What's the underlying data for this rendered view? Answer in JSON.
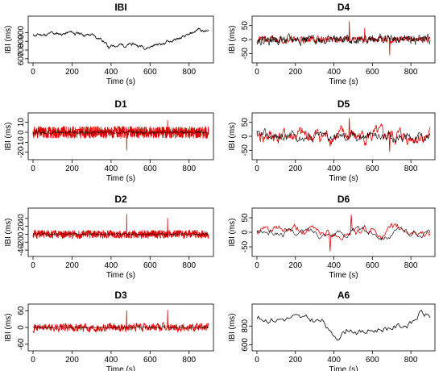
{
  "chart_data": [
    {
      "id": "ibi",
      "title": "IBI",
      "type": "line",
      "xlabel": "Time (s)",
      "ylabel": "IBI (ms)",
      "xlim": [
        0,
        900
      ],
      "ylim": [
        580,
        1060
      ],
      "xticks": [
        0,
        200,
        400,
        600,
        800
      ],
      "yticks": [
        600,
        700,
        800,
        900
      ],
      "series": [
        {
          "color": "#000000",
          "samples": 450,
          "noise": 40,
          "smooth": 0.9,
          "seed": 11,
          "trend": [
            [
              0,
              870
            ],
            [
              100,
              880
            ],
            [
              200,
              895
            ],
            [
              300,
              870
            ],
            [
              360,
              820
            ],
            [
              390,
              720
            ],
            [
              420,
              760
            ],
            [
              500,
              760
            ],
            [
              580,
              740
            ],
            [
              650,
              770
            ],
            [
              700,
              800
            ],
            [
              800,
              850
            ],
            [
              850,
              940
            ],
            [
              900,
              910
            ]
          ]
        }
      ]
    },
    {
      "id": "d4",
      "title": "D4",
      "type": "line",
      "xlabel": "Time (s)",
      "ylabel": "IBI (ms)",
      "xlim": [
        0,
        900
      ],
      "ylim": [
        -75,
        75
      ],
      "xticks": [
        0,
        200,
        400,
        600,
        800
      ],
      "yticks": [
        -50,
        0,
        50
      ],
      "series": [
        {
          "color": "#e00000",
          "samples": 450,
          "noise": 18,
          "smooth": 0.45,
          "seed": 21,
          "trend": [
            [
              0,
              0
            ],
            [
              900,
              0
            ]
          ],
          "spikes": [
            [
              480,
              65
            ],
            [
              690,
              -55
            ],
            [
              560,
              40
            ]
          ]
        },
        {
          "color": "#000000",
          "samples": 450,
          "noise": 10,
          "smooth": 0.6,
          "seed": 22,
          "trend": [
            [
              0,
              0
            ],
            [
              900,
              0
            ]
          ],
          "width": 0.6
        }
      ]
    },
    {
      "id": "d1",
      "title": "D1",
      "type": "line",
      "xlabel": "Time (s)",
      "ylabel": "IBI (ms)",
      "xlim": [
        0,
        900
      ],
      "ylim": [
        -25,
        17
      ],
      "xticks": [
        0,
        200,
        400,
        600,
        800
      ],
      "yticks": [
        -20,
        -10,
        0,
        10
      ],
      "series": [
        {
          "color": "#e00000",
          "samples": 900,
          "noise": 6,
          "smooth": 0.0,
          "seed": 31,
          "trend": [
            [
              0,
              0
            ],
            [
              900,
              0
            ]
          ],
          "spikes": [
            [
              480,
              -18
            ],
            [
              690,
              12
            ]
          ]
        },
        {
          "color": "#000000",
          "samples": 450,
          "noise": 2,
          "smooth": 0.3,
          "seed": 32,
          "trend": [
            [
              0,
              0
            ],
            [
              900,
              0
            ]
          ],
          "width": 0.5
        }
      ]
    },
    {
      "id": "d5",
      "title": "D5",
      "type": "line",
      "xlabel": "Time (s)",
      "ylabel": "IBI (ms)",
      "xlim": [
        0,
        900
      ],
      "ylim": [
        -75,
        75
      ],
      "xticks": [
        0,
        200,
        400,
        600,
        800
      ],
      "yticks": [
        -50,
        0,
        50
      ],
      "series": [
        {
          "color": "#e00000",
          "samples": 300,
          "noise": 22,
          "smooth": 0.7,
          "seed": 41,
          "trend": [
            [
              0,
              0
            ],
            [
              900,
              0
            ]
          ],
          "spikes": [
            [
              480,
              65
            ],
            [
              690,
              -55
            ]
          ]
        },
        {
          "color": "#000000",
          "samples": 300,
          "noise": 16,
          "smooth": 0.75,
          "seed": 42,
          "trend": [
            [
              0,
              0
            ],
            [
              900,
              0
            ]
          ],
          "width": 0.6
        }
      ]
    },
    {
      "id": "d2",
      "title": "D2",
      "type": "line",
      "xlabel": "Time (s)",
      "ylabel": "IBI (ms)",
      "xlim": [
        0,
        900
      ],
      "ylim": [
        -50,
        60
      ],
      "xticks": [
        0,
        200,
        400,
        600,
        800
      ],
      "yticks": [
        -40,
        -20,
        0,
        20,
        40
      ],
      "series": [
        {
          "color": "#e00000",
          "samples": 900,
          "noise": 12,
          "smooth": 0.2,
          "seed": 51,
          "trend": [
            [
              0,
              0
            ],
            [
              900,
              0
            ]
          ],
          "spikes": [
            [
              480,
              50
            ],
            [
              690,
              40
            ]
          ]
        },
        {
          "color": "#000000",
          "samples": 450,
          "noise": 4,
          "smooth": 0.4,
          "seed": 52,
          "trend": [
            [
              0,
              0
            ],
            [
              900,
              0
            ]
          ],
          "width": 0.5
        }
      ]
    },
    {
      "id": "d6",
      "title": "D6",
      "type": "line",
      "xlabel": "Time (s)",
      "ylabel": "IBI (ms)",
      "xlim": [
        0,
        900
      ],
      "ylim": [
        -75,
        75
      ],
      "xticks": [
        0,
        200,
        400,
        600,
        800
      ],
      "yticks": [
        -50,
        0,
        50
      ],
      "series": [
        {
          "color": "#e00000",
          "samples": 180,
          "noise": 25,
          "smooth": 0.85,
          "seed": 61,
          "trend": [
            [
              0,
              0
            ],
            [
              900,
              0
            ]
          ],
          "spikes": [
            [
              380,
              -65
            ],
            [
              490,
              60
            ]
          ]
        },
        {
          "color": "#000000",
          "samples": 180,
          "noise": 22,
          "smooth": 0.87,
          "seed": 62,
          "trend": [
            [
              0,
              0
            ],
            [
              900,
              0
            ]
          ],
          "width": 0.6
        }
      ]
    },
    {
      "id": "d3",
      "title": "D3",
      "type": "line",
      "xlabel": "Time (s)",
      "ylabel": "IBI (ms)",
      "xlim": [
        0,
        900
      ],
      "ylim": [
        -75,
        75
      ],
      "xticks": [
        0,
        200,
        400,
        600,
        800
      ],
      "yticks": [
        -60,
        0,
        60
      ],
      "series": [
        {
          "color": "#e00000",
          "samples": 600,
          "noise": 20,
          "smooth": 0.35,
          "seed": 71,
          "trend": [
            [
              0,
              0
            ],
            [
              900,
              0
            ]
          ],
          "spikes": [
            [
              480,
              60
            ],
            [
              690,
              62
            ]
          ]
        },
        {
          "color": "#000000",
          "samples": 450,
          "noise": 6,
          "smooth": 0.5,
          "seed": 72,
          "trend": [
            [
              0,
              0
            ],
            [
              900,
              0
            ]
          ],
          "width": 0.5
        }
      ]
    },
    {
      "id": "a6",
      "title": "A6",
      "type": "line",
      "xlabel": "Time (s)",
      "ylabel": "IBI (ms)",
      "xlim": [
        0,
        900
      ],
      "ylim": [
        560,
        1010
      ],
      "xticks": [
        0,
        200,
        400,
        600,
        800
      ],
      "yticks": [
        600,
        800
      ],
      "series": [
        {
          "color": "#000000",
          "samples": 120,
          "noise": 25,
          "smooth": 0.6,
          "seed": 81,
          "trend": [
            [
              0,
              880
            ],
            [
              100,
              870
            ],
            [
              200,
              890
            ],
            [
              300,
              860
            ],
            [
              350,
              840
            ],
            [
              380,
              710
            ],
            [
              420,
              690
            ],
            [
              480,
              770
            ],
            [
              550,
              730
            ],
            [
              620,
              760
            ],
            [
              700,
              790
            ],
            [
              800,
              820
            ],
            [
              850,
              940
            ],
            [
              900,
              900
            ]
          ]
        }
      ]
    }
  ]
}
